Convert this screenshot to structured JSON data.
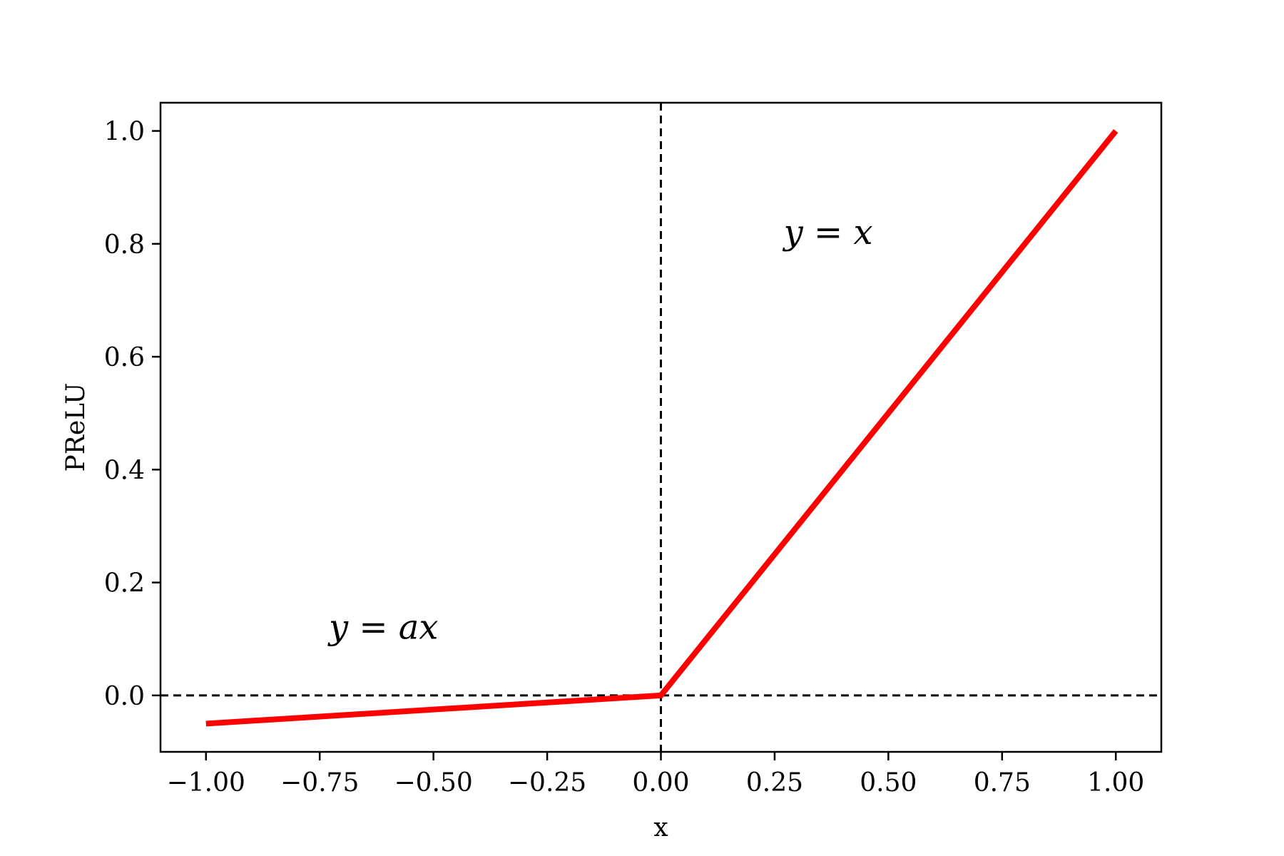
{
  "chart_data": {
    "type": "line",
    "title": "",
    "xlabel": "x",
    "ylabel": "PReLU",
    "xlim": [
      -1.1,
      1.1
    ],
    "ylim": [
      -0.1,
      1.05
    ],
    "xticks": [
      -1.0,
      -0.75,
      -0.5,
      -0.25,
      0.0,
      0.25,
      0.5,
      0.75,
      1.0
    ],
    "xtick_labels": [
      "−1.00",
      "−0.75",
      "−0.50",
      "−0.25",
      "0.00",
      "0.25",
      "0.50",
      "0.75",
      "1.00"
    ],
    "yticks": [
      0.0,
      0.2,
      0.4,
      0.6,
      0.8,
      1.0
    ],
    "ytick_labels": [
      "0.0",
      "0.2",
      "0.4",
      "0.6",
      "0.8",
      "1.0"
    ],
    "grid": false,
    "series": [
      {
        "x": [
          -1.0,
          0.0,
          1.0
        ],
        "y": [
          -0.05,
          0.0,
          1.0
        ],
        "color": "#ff0000"
      }
    ],
    "reference_lines": [
      {
        "orientation": "horizontal",
        "value": 0.0,
        "style": "dashed",
        "color": "#000000"
      },
      {
        "orientation": "vertical",
        "value": 0.0,
        "style": "dashed",
        "color": "#000000"
      }
    ],
    "annotations": [
      {
        "text": "y = x",
        "x": 0.27,
        "y": 0.8
      },
      {
        "text": "y = ax",
        "x": -0.73,
        "y": 0.1
      }
    ]
  }
}
